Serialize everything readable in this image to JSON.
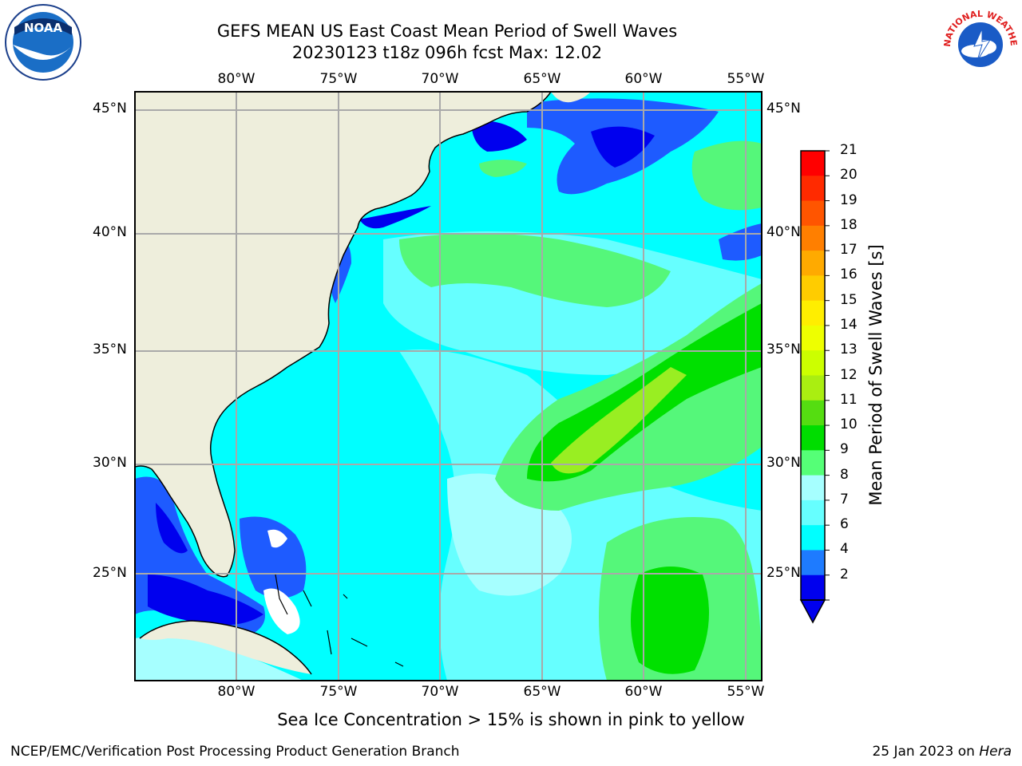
{
  "header": {
    "title_line1": "GEFS MEAN US East Coast Mean Period of Swell Waves",
    "title_line2": "20230123 t18z 096h fcst   Max: 12.02"
  },
  "logos": {
    "noaa_text": "NOAA",
    "nws_text": "NATIONAL WEATHER SERVICE"
  },
  "map": {
    "lon_labels": [
      "80°W",
      "75°W",
      "70°W",
      "65°W",
      "60°W",
      "55°W"
    ],
    "lat_labels": [
      "45°N",
      "40°N",
      "35°N",
      "30°N",
      "25°N"
    ],
    "colors": {
      "land": "#eeeedc",
      "blue": "#0000ee",
      "mid_blue": "#1e5bff",
      "cyan": "#00ffff",
      "light_cyan": "#66ffff",
      "pale_cyan": "#a6ffff",
      "light_green": "#55f77a",
      "green": "#00e000",
      "yellow_green": "#99ee22",
      "grid": "#a9a9a9"
    }
  },
  "colorbar": {
    "title": "Mean Period of Swell Waves [s]",
    "ticks": [
      "21",
      "20",
      "19",
      "18",
      "17",
      "16",
      "15",
      "14",
      "13",
      "12",
      "11",
      "10",
      "9",
      "8",
      "7",
      "6",
      "4",
      "2"
    ],
    "colors": [
      "#ff0000",
      "#ff2a00",
      "#ff5500",
      "#ff7f00",
      "#ffaa00",
      "#ffcc00",
      "#ffee00",
      "#eeff00",
      "#ccff00",
      "#aaee11",
      "#55dd11",
      "#00dd00",
      "#55ff77",
      "#a6ffff",
      "#66ffff",
      "#00ffff",
      "#1e7bff",
      "#0000ee"
    ]
  },
  "ice_note": "Sea Ice Concentration > 15% is shown in pink to yellow",
  "footer": {
    "left": "NCEP/EMC/Verification Post Processing Product Generation Branch",
    "right_date": "25 Jan 2023 on",
    "right_machine": "Hera"
  }
}
